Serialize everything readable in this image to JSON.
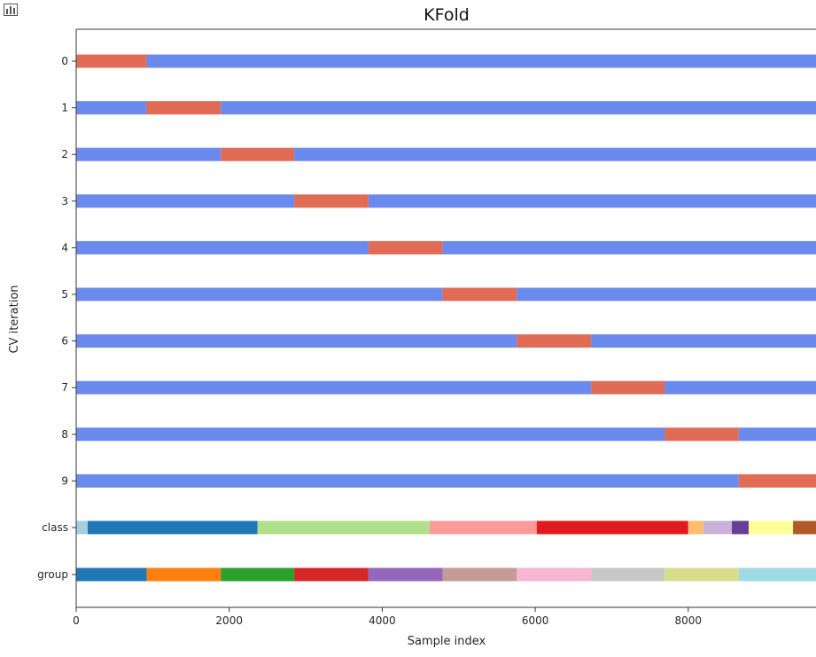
{
  "chart_data": {
    "type": "bar",
    "title": "KFold",
    "xlabel": "Sample index",
    "ylabel": "CV iteration",
    "xlim": [
      0,
      9670
    ],
    "xticks": [
      0,
      2000,
      4000,
      6000,
      8000
    ],
    "n_samples": 9670,
    "test_color": "#e06c55",
    "train_color": "#6b8aed",
    "iterations": [
      {
        "label": "0",
        "test": [
          0,
          920
        ]
      },
      {
        "label": "1",
        "test": [
          920,
          1890
        ]
      },
      {
        "label": "2",
        "test": [
          1890,
          2850
        ]
      },
      {
        "label": "3",
        "test": [
          2850,
          3820
        ]
      },
      {
        "label": "4",
        "test": [
          3820,
          4790
        ]
      },
      {
        "label": "5",
        "test": [
          4790,
          5760
        ]
      },
      {
        "label": "6",
        "test": [
          5760,
          6730
        ]
      },
      {
        "label": "7",
        "test": [
          6730,
          7690
        ]
      },
      {
        "label": "8",
        "test": [
          7690,
          8660
        ]
      },
      {
        "label": "9",
        "test": [
          8660,
          9670
        ]
      }
    ],
    "class_row": {
      "label": "class",
      "segments": [
        {
          "start": 0,
          "end": 150,
          "color": "#a6cee3"
        },
        {
          "start": 150,
          "end": 2370,
          "color": "#1f78b4"
        },
        {
          "start": 2370,
          "end": 4620,
          "color": "#b2df8a"
        },
        {
          "start": 4620,
          "end": 6020,
          "color": "#fb9a99"
        },
        {
          "start": 6020,
          "end": 8000,
          "color": "#e31a1c"
        },
        {
          "start": 8000,
          "end": 8200,
          "color": "#fdbf6f"
        },
        {
          "start": 8200,
          "end": 8570,
          "color": "#cab2d6"
        },
        {
          "start": 8570,
          "end": 8790,
          "color": "#6a3d9a"
        },
        {
          "start": 8790,
          "end": 9370,
          "color": "#ffff99"
        },
        {
          "start": 9370,
          "end": 9670,
          "color": "#b15928"
        }
      ]
    },
    "group_row": {
      "label": "group",
      "segments": [
        {
          "start": 0,
          "end": 920,
          "color": "#1f77b4"
        },
        {
          "start": 920,
          "end": 1890,
          "color": "#ff7f0e"
        },
        {
          "start": 1890,
          "end": 2850,
          "color": "#2ca02c"
        },
        {
          "start": 2850,
          "end": 3820,
          "color": "#d62728"
        },
        {
          "start": 3820,
          "end": 4790,
          "color": "#9467bd"
        },
        {
          "start": 4790,
          "end": 5760,
          "color": "#c49c94"
        },
        {
          "start": 5760,
          "end": 6730,
          "color": "#f7b6d2"
        },
        {
          "start": 6730,
          "end": 7690,
          "color": "#c7c7c7"
        },
        {
          "start": 7690,
          "end": 8660,
          "color": "#dbdb8d"
        },
        {
          "start": 8660,
          "end": 9670,
          "color": "#9edae5"
        }
      ]
    }
  }
}
